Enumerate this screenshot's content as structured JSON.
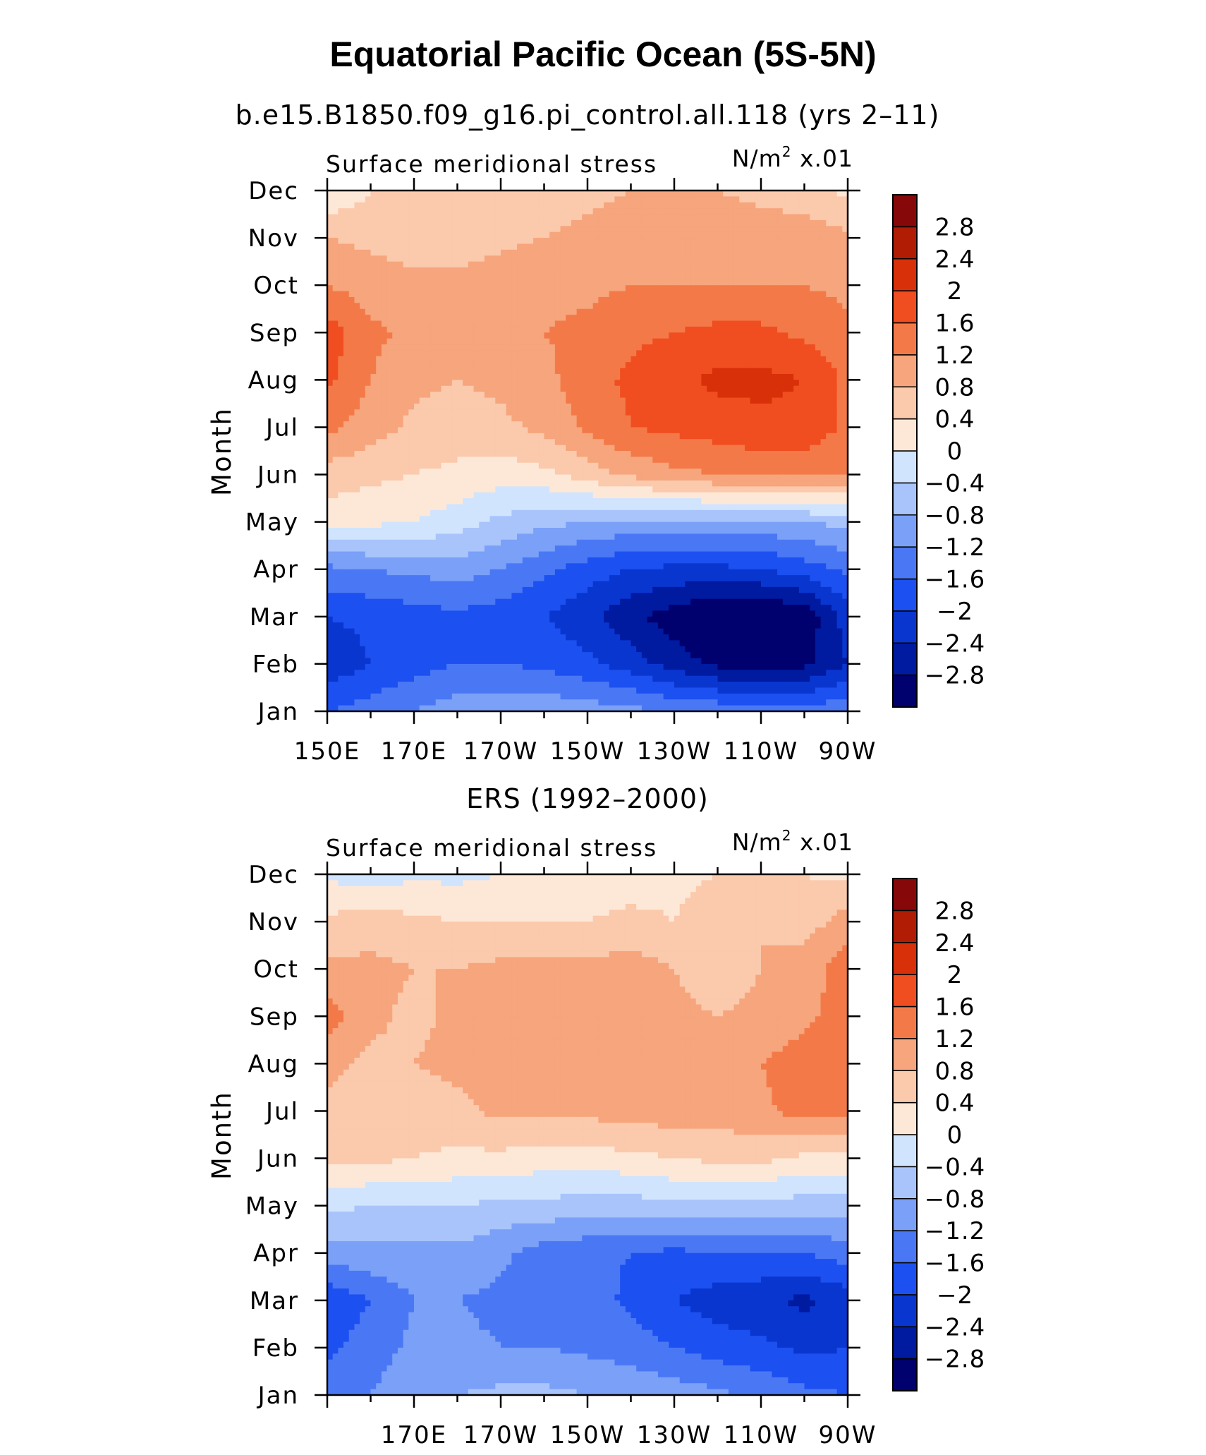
{
  "title": "Equatorial Pacific Ocean (5S-5N)",
  "colors": {
    "levels": [
      -3.2,
      -2.8,
      -2.4,
      -2.0,
      -1.6,
      -1.2,
      -0.8,
      -0.4,
      0,
      0.4,
      0.8,
      1.2,
      1.6,
      2.0,
      2.4,
      2.8,
      3.2
    ],
    "fills": [
      "#00006e",
      "#001aa0",
      "#0a36d0",
      "#1c50f0",
      "#4a78f5",
      "#7aa0f8",
      "#a8c4fb",
      "#d0e4fd",
      "#fde8d8",
      "#fbc9ac",
      "#f6a57c",
      "#f37a48",
      "#f04e20",
      "#d83008",
      "#b01c04",
      "#860808"
    ]
  },
  "chart_data": [
    {
      "type": "heatmap",
      "subtitle": "b.e15.B1850.f09_g16.pi_control.all.118 (yrs 2–11)",
      "left_label": "Surface meridional stress",
      "right_label_unit": "N/m",
      "right_label_exp": "2",
      "right_label_scale": " x.01",
      "ylabel": "Month",
      "x_tick_labels": [
        "150E",
        "170E",
        "170W",
        "150W",
        "130W",
        "110W",
        "90W"
      ],
      "y_tick_labels": [
        "Jan",
        "Feb",
        "Mar",
        "Apr",
        "May",
        "Jun",
        "Jul",
        "Aug",
        "Sep",
        "Oct",
        "Nov",
        "Dec"
      ],
      "colorbar_labels": [
        "2.8",
        "2.4",
        "2",
        "1.6",
        "1.2",
        "0.8",
        "0.4",
        "0",
        "−0.4",
        "−0.8",
        "−1.2",
        "−1.6",
        "−2",
        "−2.4",
        "−2.8"
      ],
      "xlim": [
        150,
        270
      ],
      "ylim": [
        1,
        12
      ],
      "x": [
        150,
        160,
        170,
        180,
        190,
        200,
        210,
        220,
        230,
        240,
        250,
        260,
        270
      ],
      "months": [
        1,
        2,
        3,
        4,
        5,
        6,
        7,
        8,
        9,
        10,
        11,
        12
      ],
      "z": [
        [
          -1.6,
          -1.4,
          -1.2,
          -1.0,
          -0.9,
          -0.9,
          -1.0,
          -1.1,
          -1.2,
          -1.3,
          -1.4,
          -1.4,
          -1.3
        ],
        [
          -2.3,
          -2.0,
          -1.8,
          -1.6,
          -1.6,
          -1.7,
          -1.9,
          -2.2,
          -2.6,
          -2.9,
          -3.0,
          -2.9,
          -2.4
        ],
        [
          -2.0,
          -1.9,
          -1.8,
          -1.7,
          -1.8,
          -2.0,
          -2.3,
          -2.7,
          -3.0,
          -3.3,
          -3.3,
          -3.1,
          -2.2
        ],
        [
          -1.3,
          -1.2,
          -1.1,
          -1.0,
          -1.2,
          -1.5,
          -1.8,
          -2.0,
          -2.1,
          -2.1,
          -2.0,
          -1.8,
          -1.5
        ],
        [
          0.2,
          0.1,
          0.0,
          -0.2,
          -0.5,
          -0.7,
          -0.8,
          -0.9,
          -0.9,
          -0.9,
          -0.9,
          -0.8,
          -0.7
        ],
        [
          0.6,
          0.5,
          0.4,
          0.3,
          0.2,
          0.3,
          0.6,
          0.9,
          1.1,
          1.2,
          1.3,
          1.3,
          1.2
        ],
        [
          1.3,
          1.0,
          0.7,
          0.6,
          0.7,
          0.9,
          1.3,
          1.6,
          1.7,
          1.8,
          1.9,
          1.9,
          1.5
        ],
        [
          1.7,
          1.2,
          0.9,
          0.8,
          0.9,
          1.1,
          1.4,
          1.7,
          1.9,
          2.1,
          2.1,
          2.0,
          1.5
        ],
        [
          1.8,
          1.3,
          1.1,
          1.0,
          1.1,
          1.2,
          1.3,
          1.5,
          1.6,
          1.7,
          1.7,
          1.5,
          1.3
        ],
        [
          1.2,
          1.0,
          0.9,
          0.9,
          1.0,
          1.1,
          1.1,
          1.2,
          1.2,
          1.2,
          1.2,
          1.2,
          1.1
        ],
        [
          0.8,
          0.7,
          0.6,
          0.6,
          0.7,
          0.8,
          0.9,
          1.0,
          1.0,
          1.0,
          1.0,
          1.0,
          0.9
        ],
        [
          0.0,
          0.4,
          0.5,
          0.5,
          0.5,
          0.6,
          0.7,
          0.8,
          0.8,
          0.8,
          0.7,
          0.6,
          0.3
        ]
      ]
    },
    {
      "type": "heatmap",
      "subtitle": "ERS (1992–2000)",
      "left_label": "Surface meridional stress",
      "right_label_unit": "N/m",
      "right_label_exp": "2",
      "right_label_scale": " x.01",
      "ylabel": "Month",
      "x_tick_labels": [
        "170E",
        "170W",
        "150W",
        "130W",
        "110W",
        "90W"
      ],
      "y_tick_labels": [
        "Jan",
        "Feb",
        "Mar",
        "Apr",
        "May",
        "Jun",
        "Jul",
        "Aug",
        "Sep",
        "Oct",
        "Nov",
        "Dec"
      ],
      "colorbar_labels": [
        "2.8",
        "2.4",
        "2",
        "1.6",
        "1.2",
        "0.8",
        "0.4",
        "0",
        "−0.4",
        "−0.8",
        "−1.2",
        "−1.6",
        "−2",
        "−2.4",
        "−2.8"
      ],
      "xlim": [
        150,
        270
      ],
      "ylim": [
        1,
        12
      ],
      "x": [
        150,
        160,
        170,
        180,
        190,
        200,
        210,
        220,
        230,
        240,
        250,
        260,
        270
      ],
      "months": [
        1,
        2,
        3,
        4,
        5,
        6,
        7,
        8,
        9,
        10,
        11,
        12
      ],
      "z": [
        [
          -1.3,
          -1.2,
          -0.9,
          -0.8,
          -0.7,
          -0.7,
          -0.8,
          -0.9,
          -1.0,
          -1.1,
          -1.3,
          -1.5,
          -1.6
        ],
        [
          -1.7,
          -1.4,
          -1.1,
          -1.1,
          -1.2,
          -1.2,
          -1.3,
          -1.4,
          -1.6,
          -1.8,
          -1.9,
          -2.1,
          -2.0
        ],
        [
          -1.9,
          -1.6,
          -1.2,
          -1.2,
          -1.3,
          -1.4,
          -1.4,
          -1.7,
          -2.0,
          -2.2,
          -2.3,
          -2.5,
          -2.2
        ],
        [
          -1.0,
          -0.9,
          -0.9,
          -0.9,
          -1.1,
          -1.4,
          -1.5,
          -1.6,
          -1.7,
          -1.6,
          -1.6,
          -1.6,
          -1.4
        ],
        [
          -0.3,
          -0.4,
          -0.4,
          -0.4,
          -0.5,
          -0.5,
          -0.6,
          -0.6,
          -0.5,
          -0.5,
          -0.5,
          -0.6,
          -0.6
        ],
        [
          0.5,
          0.5,
          0.4,
          0.3,
          0.3,
          0.2,
          0.2,
          0.3,
          0.4,
          0.5,
          0.5,
          0.3,
          0.3
        ],
        [
          0.7,
          0.6,
          0.6,
          0.7,
          0.9,
          0.9,
          0.9,
          1.0,
          1.0,
          1.0,
          1.1,
          1.4,
          1.3
        ],
        [
          0.9,
          0.7,
          0.8,
          0.9,
          1.0,
          1.0,
          1.0,
          1.1,
          1.1,
          0.9,
          1.2,
          1.4,
          1.5
        ],
        [
          1.4,
          0.9,
          0.7,
          0.9,
          1.0,
          1.1,
          1.0,
          1.0,
          0.9,
          0.8,
          0.9,
          1.1,
          1.4
        ],
        [
          0.9,
          0.9,
          0.8,
          0.8,
          0.9,
          0.9,
          0.9,
          1.0,
          0.8,
          0.6,
          0.8,
          1.0,
          1.4
        ],
        [
          0.5,
          0.6,
          0.5,
          0.4,
          0.4,
          0.4,
          0.4,
          0.5,
          0.4,
          0.6,
          0.8,
          0.6,
          1.0
        ],
        [
          -0.1,
          -0.2,
          -0.1,
          -0.1,
          0.0,
          0.1,
          0.2,
          0.2,
          0.3,
          0.4,
          0.5,
          0.4,
          0.3
        ]
      ]
    }
  ]
}
